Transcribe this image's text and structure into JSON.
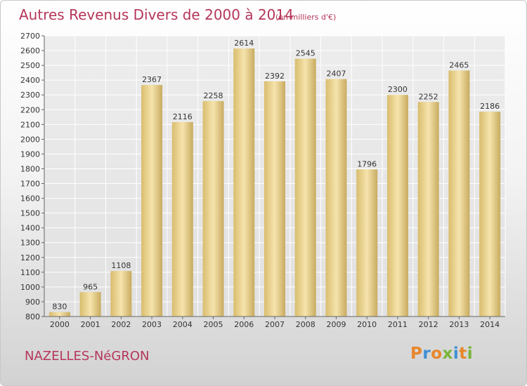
{
  "title": "Autres Revenus Divers de 2000 à 2014",
  "subtitle": "(en milliers d'€)",
  "location": "NAZELLES-NéGRON",
  "logo": {
    "text": "Proxiti",
    "colors": [
      "#e8862a",
      "#3f8fd2",
      "#e8862a",
      "#79b43a",
      "#3f8fd2",
      "#e8862a",
      "#79b43a"
    ]
  },
  "colors": {
    "accent": "#b5365a",
    "bar_light": "#f5e2a8",
    "bar_dark": "#c9ad62"
  },
  "chart_data": {
    "type": "bar",
    "categories": [
      "2000",
      "2001",
      "2002",
      "2003",
      "2004",
      "2005",
      "2006",
      "2007",
      "2008",
      "2009",
      "2010",
      "2011",
      "2012",
      "2013",
      "2014"
    ],
    "values": [
      830,
      965,
      1108,
      2367,
      2116,
      2258,
      2614,
      2392,
      2545,
      2407,
      1796,
      2300,
      2252,
      2465,
      2186
    ],
    "ylim": [
      800,
      2700
    ],
    "yticks": [
      800,
      900,
      1000,
      1100,
      1200,
      1300,
      1400,
      1500,
      1600,
      1700,
      1800,
      1900,
      2000,
      2100,
      2200,
      2300,
      2400,
      2500,
      2600,
      2700
    ],
    "grid": true,
    "title": "Autres Revenus Divers de 2000 à 2014",
    "xlabel": "",
    "ylabel": ""
  }
}
